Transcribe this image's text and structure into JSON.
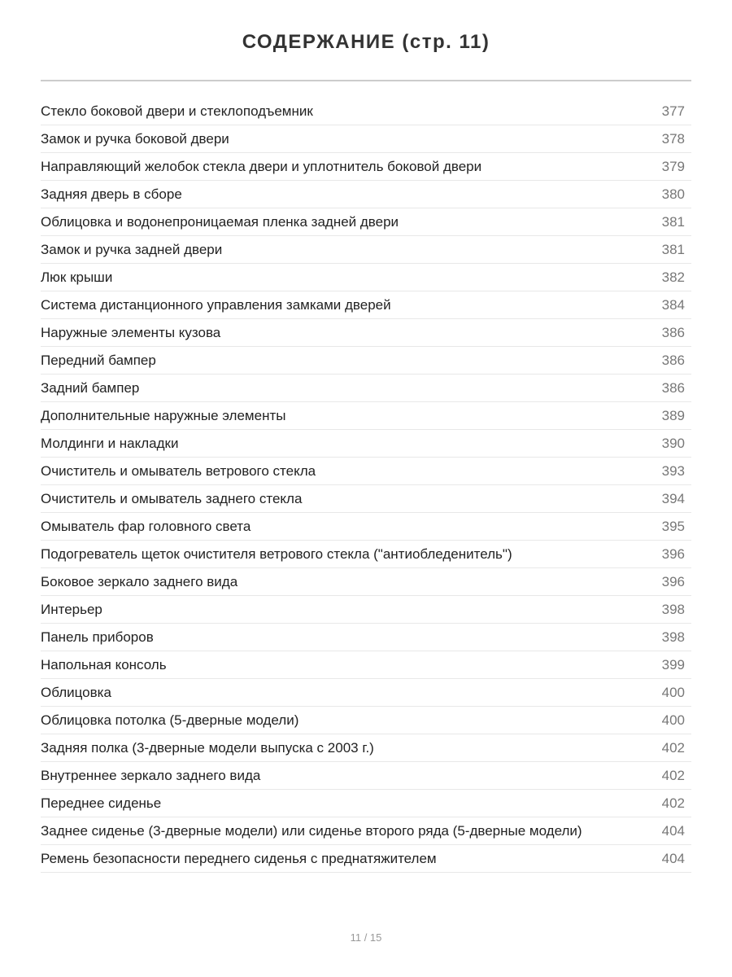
{
  "title": "СОДЕРЖАНИЕ (стр. 11)",
  "entries": [
    {
      "title": "Стекло боковой двери и стеклоподъемник",
      "page": "377"
    },
    {
      "title": "Замок и ручка боковой двери",
      "page": "378"
    },
    {
      "title": "Направляющий желобок стекла двери и уплотнитель боковой двери",
      "page": "379"
    },
    {
      "title": "Задняя дверь в сборе",
      "page": "380"
    },
    {
      "title": "Облицовка и водонепроницаемая пленка задней двери",
      "page": "381"
    },
    {
      "title": "Замок и ручка задней двери",
      "page": "381"
    },
    {
      "title": "Люк крыши",
      "page": "382"
    },
    {
      "title": "Система дистанционного управления замками дверей",
      "page": "384"
    },
    {
      "title": "Наружные элементы кузова",
      "page": "386"
    },
    {
      "title": "Передний бампер",
      "page": "386"
    },
    {
      "title": "Задний бампер",
      "page": "386"
    },
    {
      "title": "Дополнительные наружные элементы",
      "page": "389"
    },
    {
      "title": "Молдинги и накладки",
      "page": "390"
    },
    {
      "title": "Очиститель и омыватель ветрового стекла",
      "page": "393"
    },
    {
      "title": "Очиститель и омыватель заднего стекла",
      "page": "394"
    },
    {
      "title": "Омыватель фар головного света",
      "page": "395"
    },
    {
      "title": "Подогреватель щеток очистителя ветрового стекла (\"антиобледенитель\")",
      "page": "396"
    },
    {
      "title": "Боковое зеркало заднего вида",
      "page": "396"
    },
    {
      "title": "Интерьер",
      "page": "398"
    },
    {
      "title": "Панель приборов",
      "page": "398"
    },
    {
      "title": "Напольная консоль",
      "page": "399"
    },
    {
      "title": "Облицовка",
      "page": "400"
    },
    {
      "title": "Облицовка потолка (5-дверные модели)",
      "page": "400"
    },
    {
      "title": "Задняя полка (3-дверные модели выпуска с 2003 г.)",
      "page": "402"
    },
    {
      "title": "Внутреннее зеркало заднего вида",
      "page": "402"
    },
    {
      "title": "Переднее сиденье",
      "page": "402"
    },
    {
      "title": "Заднее сиденье (3-дверные модели) или сиденье второго ряда (5-дверные модели)",
      "page": "404"
    },
    {
      "title": "Ремень безопасности переднего сиденья с преднатяжителем",
      "page": "404"
    }
  ],
  "footer": {
    "page_indicator": "11 / 15"
  }
}
